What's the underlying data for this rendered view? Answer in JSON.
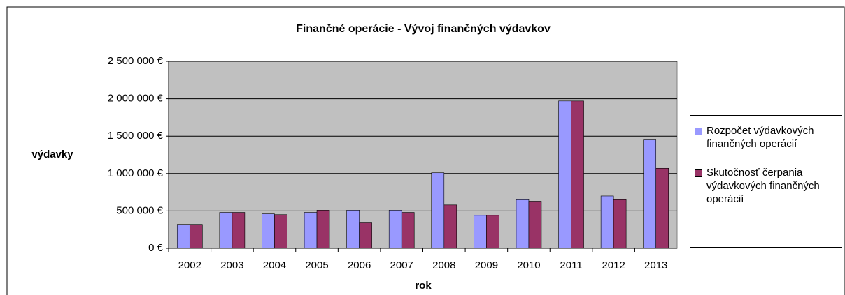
{
  "chart_data": {
    "type": "bar",
    "title": "Finančné operácie - Vývoj finančných výdavkov",
    "x_label": "rok",
    "y_label": "výdavky",
    "categories": [
      "2002",
      "2003",
      "2004",
      "2005",
      "2006",
      "2007",
      "2008",
      "2009",
      "2010",
      "2011",
      "2012",
      "2013"
    ],
    "series": [
      {
        "name": "Rozpočet výdavkových finančných operácií",
        "color": "#9999ff",
        "values": [
          320000,
          480000,
          460000,
          480000,
          510000,
          510000,
          1010000,
          440000,
          650000,
          1970000,
          700000,
          1450000
        ]
      },
      {
        "name": "Skutočnosť čerpania výdavkových finančných operácií",
        "color": "#993366",
        "values": [
          320000,
          480000,
          450000,
          510000,
          340000,
          480000,
          580000,
          440000,
          630000,
          1970000,
          650000,
          1070000
        ]
      }
    ],
    "ylim": [
      0,
      2500000
    ],
    "yticks": [
      {
        "value": 0,
        "label": "0 €"
      },
      {
        "value": 500000,
        "label": "500 000 €"
      },
      {
        "value": 1000000,
        "label": "1 000 000 €"
      },
      {
        "value": 1500000,
        "label": "1 500 000 €"
      },
      {
        "value": 2000000,
        "label": "2 000 000 €"
      },
      {
        "value": 2500000,
        "label": "2 500 000 €"
      }
    ],
    "grid": true,
    "plot_background": "#c0c0c0",
    "legend": "right"
  }
}
